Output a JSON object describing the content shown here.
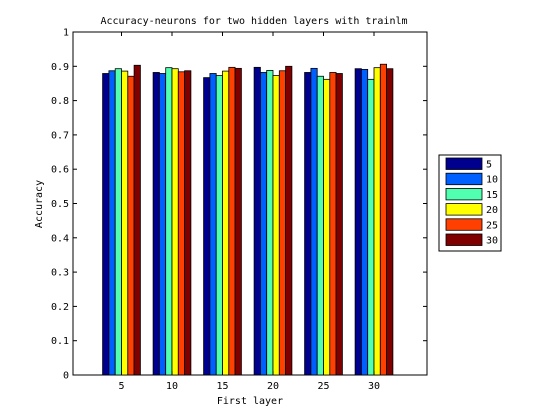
{
  "chart_data": {
    "type": "bar",
    "title": "Accuracy-neurons for two hidden layers with trainlm",
    "xlabel": "First layer",
    "ylabel": "Accuracy",
    "ylim": [
      0,
      1
    ],
    "yticks": [
      0,
      0.1,
      0.2,
      0.3,
      0.4,
      0.5,
      0.6,
      0.7,
      0.8,
      0.9,
      1
    ],
    "ytick_labels": [
      "0",
      "0.1",
      "0.2",
      "0.3",
      "0.4",
      "0.5",
      "0.6",
      "0.7",
      "0.8",
      "0.9",
      "1"
    ],
    "categories": [
      "5",
      "10",
      "15",
      "20",
      "25",
      "30"
    ],
    "grid": false,
    "legend_position": "outside-right",
    "series": [
      {
        "name": "5",
        "color": "#00008f",
        "values": [
          0.879,
          0.882,
          0.867,
          0.897,
          0.882,
          0.893
        ]
      },
      {
        "name": "10",
        "color": "#0060ff",
        "values": [
          0.887,
          0.879,
          0.879,
          0.882,
          0.894,
          0.891
        ]
      },
      {
        "name": "15",
        "color": "#50ffb0",
        "values": [
          0.893,
          0.896,
          0.873,
          0.888,
          0.871,
          0.862
        ]
      },
      {
        "name": "20",
        "color": "#ffff00",
        "values": [
          0.886,
          0.893,
          0.886,
          0.873,
          0.862,
          0.896
        ]
      },
      {
        "name": "25",
        "color": "#ff4000",
        "values": [
          0.871,
          0.884,
          0.897,
          0.887,
          0.882,
          0.906
        ]
      },
      {
        "name": "30",
        "color": "#800000",
        "values": [
          0.903,
          0.887,
          0.894,
          0.9,
          0.879,
          0.893
        ]
      }
    ]
  }
}
